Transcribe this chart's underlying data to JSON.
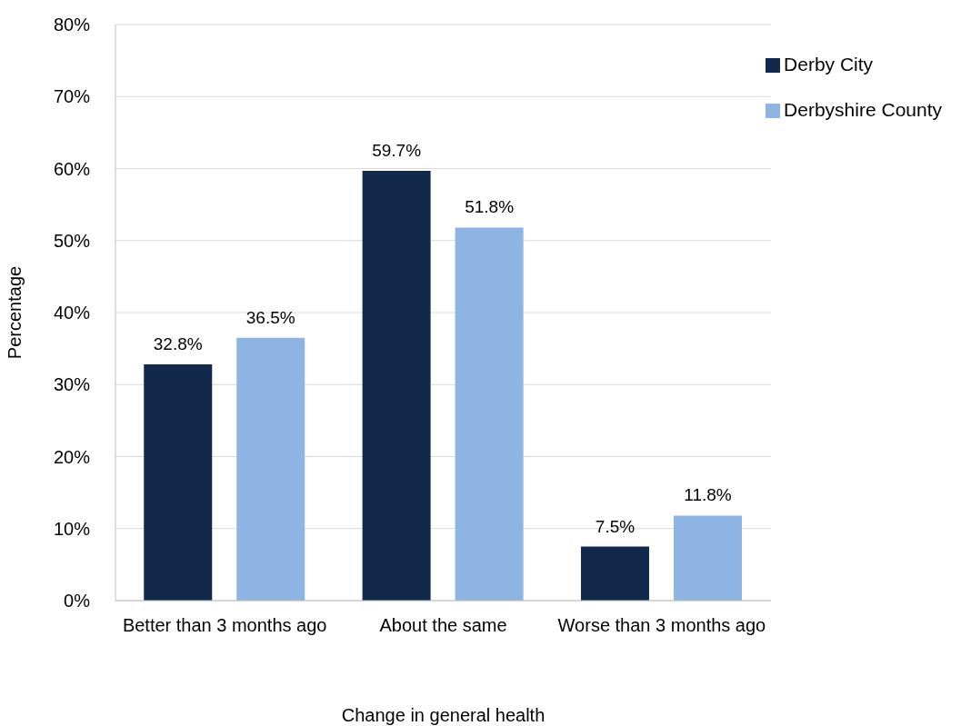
{
  "chart_data": {
    "type": "bar",
    "xlabel": "Change in general health",
    "ylabel": "Percentage",
    "categories": [
      "Better than 3 months ago",
      "About the same",
      "Worse than 3 months ago"
    ],
    "series": [
      {
        "name": "Derby City",
        "color": "#13294b",
        "values": [
          32.8,
          59.7,
          7.5
        ],
        "value_labels": [
          "32.8%",
          "59.7%",
          "7.5%"
        ]
      },
      {
        "name": "Derbyshire County",
        "color": "#8eb4e3",
        "values": [
          36.5,
          51.8,
          11.8
        ],
        "value_labels": [
          "36.5%",
          "51.8%",
          "11.8%"
        ]
      }
    ],
    "ylim": [
      0,
      80
    ],
    "yticks": [
      {
        "value": 0,
        "label": "0%"
      },
      {
        "value": 10,
        "label": "10%"
      },
      {
        "value": 20,
        "label": "20%"
      },
      {
        "value": 30,
        "label": "30%"
      },
      {
        "value": 40,
        "label": "40%"
      },
      {
        "value": 50,
        "label": "50%"
      },
      {
        "value": 60,
        "label": "60%"
      },
      {
        "value": 70,
        "label": "70%"
      },
      {
        "value": 80,
        "label": "80%"
      }
    ],
    "grid": "y",
    "legend": "top right"
  }
}
